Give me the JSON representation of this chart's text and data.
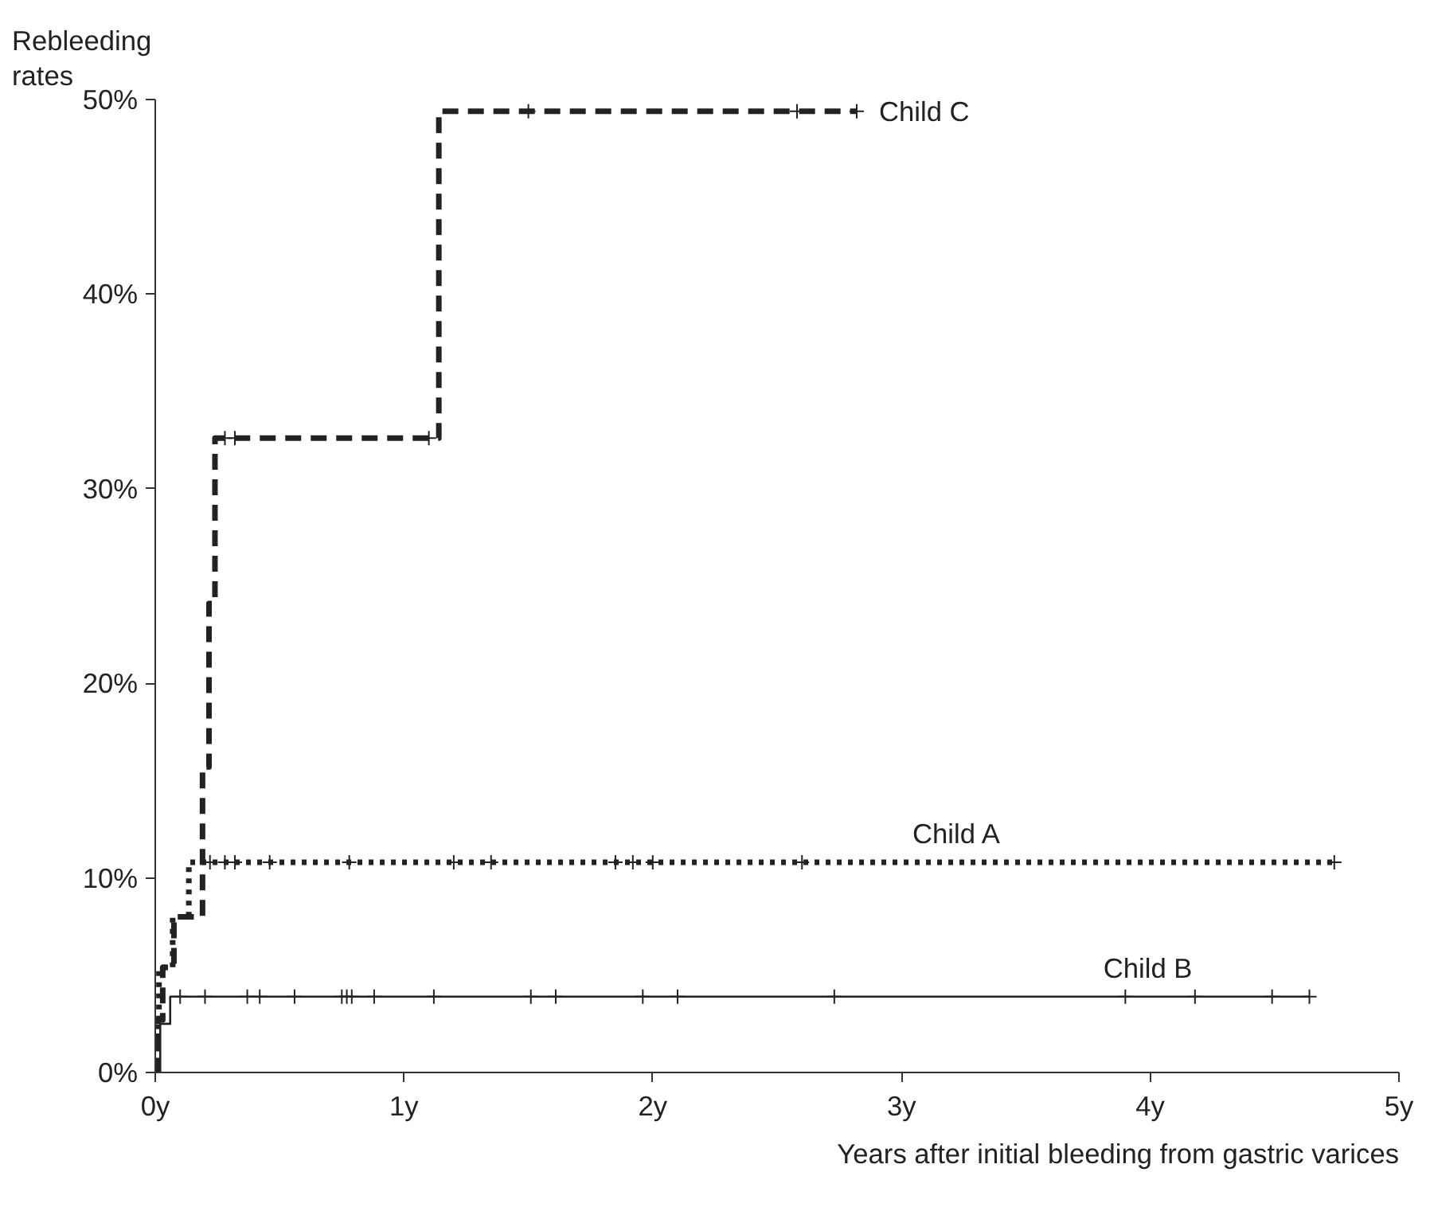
{
  "chart_data": {
    "type": "step",
    "xlabel": "Years after initial bleeding from gastric varices",
    "ylabel": "Rebleeding\nrates",
    "xlim": [
      0,
      5
    ],
    "ylim": [
      0,
      50
    ],
    "xticks": [
      {
        "value": 0,
        "label": "0y"
      },
      {
        "value": 1,
        "label": "1y"
      },
      {
        "value": 2,
        "label": "2y"
      },
      {
        "value": 3,
        "label": "3y"
      },
      {
        "value": 4,
        "label": "4y"
      },
      {
        "value": 5,
        "label": "5y"
      }
    ],
    "yticks": [
      {
        "value": 0,
        "label": "0%"
      },
      {
        "value": 10,
        "label": "10%"
      },
      {
        "value": 20,
        "label": "20%"
      },
      {
        "value": 30,
        "label": "30%"
      },
      {
        "value": 40,
        "label": "40%"
      },
      {
        "value": 50,
        "label": "50%"
      }
    ],
    "grid": false,
    "series": [
      {
        "name": "Child C",
        "color": "#222222",
        "line_style": "dashed",
        "x": [
          0,
          0.01,
          0.03,
          0.075,
          0.19,
          0.216,
          0.24,
          1.14,
          2.82
        ],
        "values": [
          0,
          2.7,
          5.4,
          8.0,
          15.7,
          24.1,
          32.6,
          49.4,
          49.4
        ]
      },
      {
        "name": "Child A",
        "color": "#222222",
        "line_style": "dotted",
        "x": [
          0,
          0.005,
          0.015,
          0.07,
          0.135,
          4.74
        ],
        "values": [
          0,
          2.7,
          5.4,
          8.0,
          10.8,
          10.8
        ]
      },
      {
        "name": "Child B",
        "color": "#222222",
        "line_style": "solid",
        "x": [
          0,
          0.02,
          0.06,
          4.64
        ],
        "values": [
          0,
          2.5,
          3.9,
          3.9
        ]
      },
      {
        "type": "scatter",
        "marker": "cross",
        "color": "#222222",
        "x": [
          0.1,
          0.2,
          0.37,
          0.42,
          0.56,
          0.75,
          0.77,
          0.79,
          0.88,
          1.12,
          1.51,
          1.61,
          1.96,
          2.1,
          2.73,
          3.9,
          4.18,
          4.49,
          4.64
        ],
        "values": [
          3.9,
          3.9,
          3.9,
          3.9,
          3.9,
          3.9,
          3.9,
          3.9,
          3.9,
          3.9,
          3.9,
          3.9,
          3.9,
          3.9,
          3.9,
          3.9,
          3.9,
          3.9,
          3.9
        ]
      },
      {
        "type": "scatter",
        "marker": "cross",
        "color": "#222222",
        "x": [
          0.22,
          0.28,
          0.32,
          0.46,
          0.78,
          1.2,
          1.35,
          1.85,
          1.92,
          2.0,
          2.6,
          4.74
        ],
        "values": [
          10.8,
          10.8,
          10.8,
          10.8,
          10.8,
          10.8,
          10.8,
          10.8,
          10.8,
          10.8,
          10.8,
          10.8
        ]
      },
      {
        "type": "scatter",
        "marker": "cross",
        "color": "#222222",
        "x": [
          0.28,
          0.32,
          1.1,
          1.5,
          2.58,
          2.82
        ],
        "values": [
          32.6,
          32.6,
          32.6,
          49.4,
          49.4,
          49.4
        ]
      }
    ]
  }
}
